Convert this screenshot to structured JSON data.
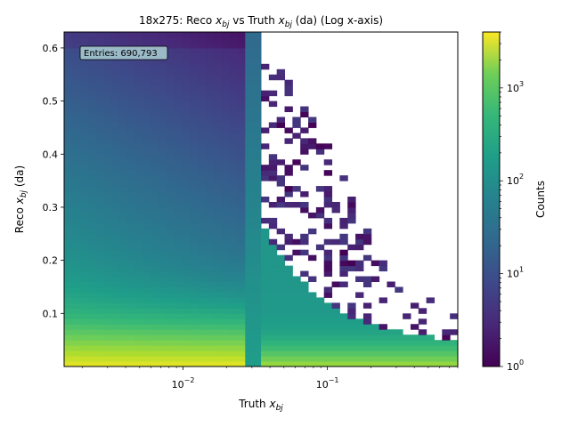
{
  "chart_data": {
    "type": "heatmap",
    "title": "18x275: Reco $x_{bj}$ vs Truth $x_{bj}$ (da) (Log x-axis)",
    "title_parts": {
      "prefix": "18x275: Reco ",
      "mid": " vs Truth ",
      "suffix": " (da) (Log x-axis)"
    },
    "xlabel": "Truth $x_{bj}$",
    "ylabel": "Reco $x_{bj}$ (da)",
    "colorbar_label": "Counts",
    "x_scale": "log",
    "xlim": [
      0.0015,
      0.8
    ],
    "ylim": [
      0.0,
      0.63
    ],
    "x_ticks": [
      {
        "value": 0.01,
        "label": "10^{-2}"
      },
      {
        "value": 0.1,
        "label": "10^{-1}"
      }
    ],
    "y_ticks": [
      0.1,
      0.2,
      0.3,
      0.4,
      0.5,
      0.6
    ],
    "y_tick_labels": [
      "0.1",
      "0.2",
      "0.3",
      "0.4",
      "0.5",
      "0.6"
    ],
    "colorbar": {
      "scale": "log",
      "range": [
        1,
        4000
      ],
      "ticks": [
        {
          "value": 1,
          "label": "10^{0}"
        },
        {
          "value": 10,
          "label": "10^{1}"
        },
        {
          "value": 100,
          "label": "10^{2}"
        },
        {
          "value": 1000,
          "label": "10^{3}"
        }
      ],
      "colormap": "viridis"
    },
    "annotation": "Entries: 690,793",
    "grid": false,
    "description_of_distribution": "Counts peak near small reco and small truth x_bj; populated region bounded by a sharp edge near truth x_bj ~0.035, with sparse low-count bins at higher truth x_bj and a diagonal-ish band at low reco x_bj extending to high truth x_bj."
  }
}
